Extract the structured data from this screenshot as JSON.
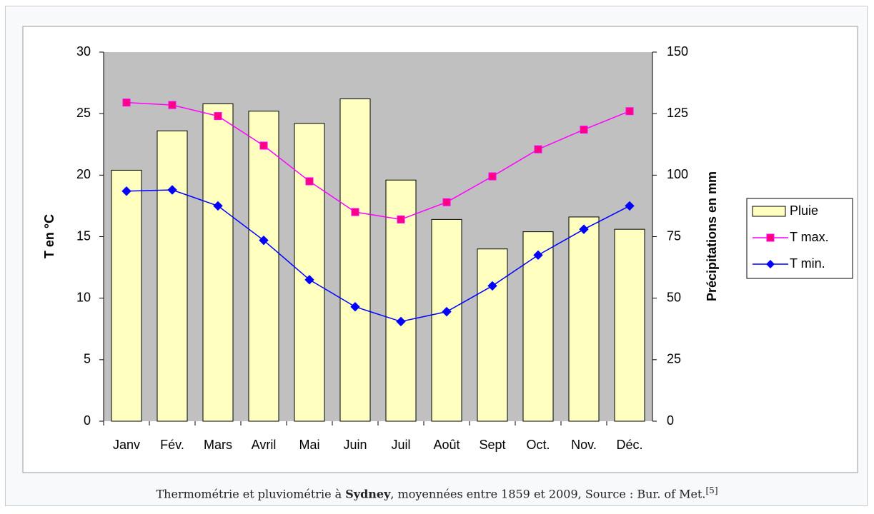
{
  "chart_data": {
    "type": "bar",
    "categories": [
      "Janv",
      "Fév.",
      "Mars",
      "Avril",
      "Mai",
      "Juin",
      "Juil",
      "Août",
      "Sept",
      "Oct.",
      "Nov.",
      "Déc."
    ],
    "series": [
      {
        "name": "Pluie",
        "type": "bar",
        "axis": "y2",
        "color": "#ffffc0",
        "values": [
          102,
          118,
          129,
          126,
          121,
          131,
          98,
          82,
          70,
          77,
          83,
          78
        ]
      },
      {
        "name": "T max.",
        "type": "line",
        "marker": "square",
        "color": "#ff00ff",
        "values": [
          25.9,
          25.7,
          24.8,
          22.4,
          19.5,
          17.0,
          16.4,
          17.8,
          19.9,
          22.1,
          23.7,
          25.2
        ]
      },
      {
        "name": "T min.",
        "type": "line",
        "marker": "diamond",
        "color": "#0000ff",
        "values": [
          18.7,
          18.8,
          17.5,
          14.7,
          11.5,
          9.3,
          8.1,
          8.9,
          11.0,
          13.5,
          15.6,
          17.5
        ]
      }
    ],
    "y_label": "T en °C",
    "y2_label": "Précipitations en mm",
    "ylim": [
      0,
      30
    ],
    "yticks": [
      0,
      5,
      10,
      15,
      20,
      25,
      30
    ],
    "y2lim": [
      0,
      150
    ],
    "y2ticks": [
      0,
      25,
      50,
      75,
      100,
      125,
      150
    ],
    "legend": "right"
  },
  "caption": {
    "before": "Thermométrie et pluviométrie à ",
    "bold": "Sydney",
    "after": ", moyennées entre 1859 et 2009, Source : Bur. of Met.",
    "ref": "[5]"
  }
}
